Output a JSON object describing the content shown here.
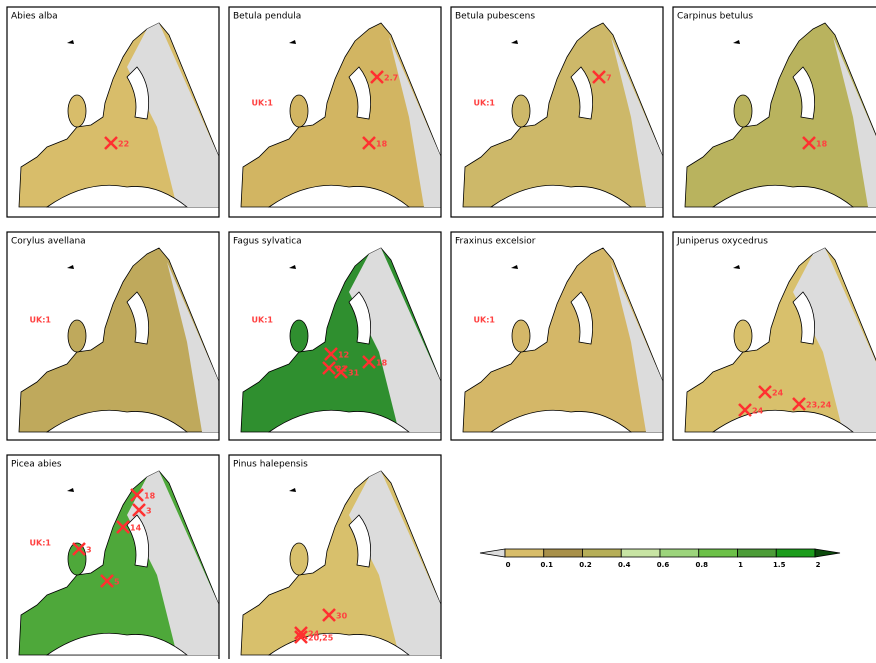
{
  "panels": [
    {
      "title": "Abies alba",
      "labels": [
        "22"
      ]
    },
    {
      "title": "Betula pendula",
      "labels": [
        "UK:1",
        "2.7",
        "18"
      ]
    },
    {
      "title": "Betula pubescens",
      "labels": [
        "UK:1",
        "7"
      ]
    },
    {
      "title": "Carpinus betulus",
      "labels": [
        "18"
      ]
    },
    {
      "title": "Corylus avellana",
      "labels": [
        "UK:1"
      ]
    },
    {
      "title": "Fagus sylvatica",
      "labels": [
        "UK:1",
        "12",
        "22",
        "31",
        "18"
      ]
    },
    {
      "title": "Fraxinus excelsior",
      "labels": [
        "UK:1"
      ]
    },
    {
      "title": "Juniperus oxycedrus",
      "labels": [
        "24",
        "24",
        "23,24"
      ]
    },
    {
      "title": "Picea abies",
      "labels": [
        "UK:1",
        "3",
        "18",
        "3",
        "14",
        "5"
      ]
    },
    {
      "title": "Pinus halepensis",
      "labels": [
        "20,25",
        "30",
        "24"
      ]
    }
  ],
  "colorbar": {
    "ticks": [
      "0",
      "0.1",
      "0.2",
      "0.4",
      "0.6",
      "0.8",
      "1",
      "1.5",
      "2"
    ]
  }
}
